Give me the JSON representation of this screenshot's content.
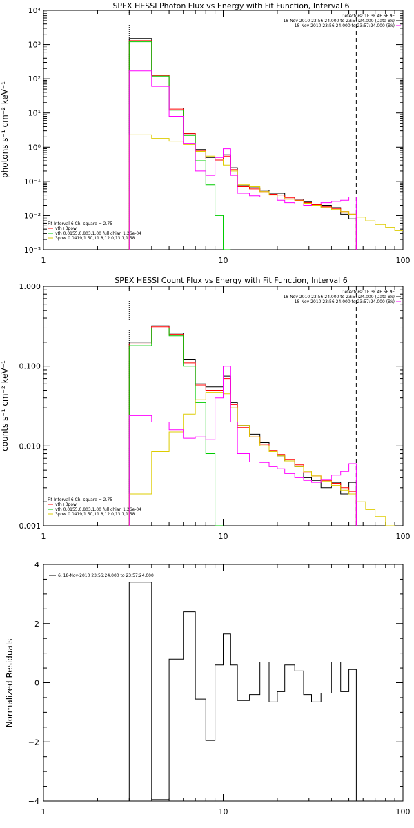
{
  "chart_data": [
    {
      "type": "line",
      "title": "SPEX HESSI Photon Flux vs Energy with Fit Function, Interval 6",
      "ylabel": "photons s⁻¹ cm⁻² keV⁻¹",
      "xlabel": "",
      "xscale": "log",
      "yscale": "log",
      "xlim": [
        1,
        100
      ],
      "ylim": [
        0.001,
        10000
      ],
      "xticks": [
        "1",
        "10",
        "100"
      ],
      "yticks": [
        "10⁻³",
        "10⁻²",
        "10⁻¹",
        "10⁰",
        "10¹",
        "10²",
        "10³",
        "10⁴"
      ],
      "grid": false,
      "vlines": {
        "dotted": 3,
        "dashed": 55
      },
      "edges": [
        3,
        4,
        5,
        6,
        7,
        8,
        9,
        10,
        11,
        12,
        14,
        16,
        18,
        20,
        22,
        25,
        28,
        31,
        35,
        40,
        45,
        50,
        55,
        62,
        70,
        80,
        90,
        100
      ],
      "legend_top": {
        "lines": [
          "Detectors: 1F 3F 4F 6F 9F",
          "18-Nov-2010 23:56:24.000 to 23:57:24.000 (Data-Bk)",
          "18-Nov-2010 23:56:24.000 to 23:57:24.000 (Bk)"
        ],
        "colors": [
          "#000000",
          "#000000",
          "#ff00ff"
        ]
      },
      "legend_bottom": {
        "lines": [
          "Fit Interval 6   Chi-square = 2.75",
          "vth+3pow",
          "vth 0.0155,0.803,1.00  full chian 1.26e-04",
          "3pow 0.0419,1.50,11.8,12.0,13.1,1.58"
        ],
        "colors": [
          "",
          "#ff0000",
          "#00cc00",
          "#ddcc00"
        ]
      },
      "series": [
        {
          "color": "#000000",
          "values": [
            1500,
            130,
            14,
            2.5,
            0.85,
            0.5,
            0.45,
            0.6,
            0.25,
            0.075,
            0.065,
            0.055,
            0.045,
            0.045,
            0.035,
            0.03,
            0.025,
            0.022,
            0.02,
            0.017,
            0.011,
            0.008
          ]
        },
        {
          "color": "#ff0000",
          "values": [
            1300,
            125,
            13,
            2.5,
            0.8,
            0.45,
            0.42,
            0.55,
            0.22,
            0.07,
            0.06,
            0.05,
            0.042,
            0.04,
            0.033,
            0.028,
            0.024,
            0.021,
            0.018,
            0.016,
            0.013,
            0.011
          ]
        },
        {
          "color": "#00cc00",
          "values": [
            1200,
            120,
            12,
            2.2,
            0.4,
            0.08,
            0.01,
            0.0005
          ]
        },
        {
          "color": "#ddcc00",
          "values": [
            2.3,
            1.8,
            1.5,
            1.2,
            0.75,
            0.55,
            0.45,
            0.3,
            0.2,
            0.08,
            0.07,
            0.05,
            0.04,
            0.035,
            0.03,
            0.027,
            0.023,
            0.02,
            0.017,
            0.015,
            0.013,
            0.011,
            0.009,
            0.007,
            0.0055,
            0.0045,
            0.0036
          ]
        },
        {
          "color": "#ff00ff",
          "values": [
            170,
            60,
            8,
            1.3,
            0.2,
            0.15,
            0.5,
            0.9,
            0.15,
            0.045,
            0.038,
            0.035,
            0.035,
            0.028,
            0.024,
            0.022,
            0.02,
            0.022,
            0.024,
            0.026,
            0.028,
            0.035
          ]
        }
      ]
    },
    {
      "type": "line",
      "title": "SPEX HESSI Count Flux vs Energy with Fit Function, Interval 6",
      "ylabel": "counts s⁻¹ cm⁻² keV⁻¹",
      "xlabel": "",
      "xscale": "log",
      "yscale": "log",
      "xlim": [
        1,
        100
      ],
      "ylim": [
        0.001,
        1.0
      ],
      "xticks": [
        "1",
        "10",
        "100"
      ],
      "yticks": [
        "0.001",
        "0.010",
        "0.100",
        "1.000"
      ],
      "grid": false,
      "vlines": {
        "dotted": 3,
        "dashed": 55
      },
      "edges": [
        3,
        4,
        5,
        6,
        7,
        8,
        9,
        10,
        11,
        12,
        14,
        16,
        18,
        20,
        22,
        25,
        28,
        31,
        35,
        40,
        45,
        50,
        55,
        62,
        70,
        80,
        90,
        100
      ],
      "legend_top": {
        "lines": [
          "Detectors: 1F 3F 4F 6F 9F",
          "18-Nov-2010 23:56:24.000 to 23:57:24.000 (Data-Bk)",
          "18-Nov-2010 23:56:24.000 to 23:57:24.000 (Bk)"
        ],
        "colors": [
          "#000000",
          "#000000",
          "#ff00ff"
        ]
      },
      "legend_bottom": {
        "lines": [
          "Fit Interval 6   Chi-square = 2.75",
          "vth+3pow",
          "vth 0.0155,0.803,1.00  full chian 1.26e-04",
          "3pow 0.0419,1.50,11.8,12.0,13.1,1.58"
        ],
        "colors": [
          "",
          "#ff0000",
          "#00cc00",
          "#ddcc00"
        ]
      },
      "series": [
        {
          "color": "#000000",
          "values": [
            0.2,
            0.32,
            0.26,
            0.12,
            0.06,
            0.055,
            0.055,
            0.075,
            0.035,
            0.018,
            0.014,
            0.011,
            0.0085,
            0.0075,
            0.0065,
            0.0055,
            0.004,
            0.0037,
            0.003,
            0.0035,
            0.0025,
            0.0035
          ]
        },
        {
          "color": "#ff0000",
          "values": [
            0.19,
            0.31,
            0.25,
            0.11,
            0.058,
            0.05,
            0.05,
            0.07,
            0.033,
            0.017,
            0.013,
            0.0105,
            0.0088,
            0.0078,
            0.0068,
            0.0058,
            0.0046,
            0.0042,
            0.0037,
            0.0034,
            0.003,
            0.0027
          ]
        },
        {
          "color": "#00cc00",
          "values": [
            0.18,
            0.3,
            0.24,
            0.1,
            0.035,
            0.008,
            0.0001
          ]
        },
        {
          "color": "#ddcc00",
          "values": [
            0.0025,
            0.0085,
            0.015,
            0.025,
            0.038,
            0.047,
            0.047,
            0.045,
            0.03,
            0.018,
            0.013,
            0.01,
            0.0085,
            0.0075,
            0.0065,
            0.0055,
            0.0048,
            0.0042,
            0.0036,
            0.0032,
            0.0028,
            0.0025,
            0.002,
            0.0016,
            0.0013,
            0.001
          ]
        },
        {
          "color": "#ff00ff",
          "values": [
            0.024,
            0.02,
            0.016,
            0.0125,
            0.013,
            0.012,
            0.04,
            0.1,
            0.02,
            0.008,
            0.0063,
            0.0062,
            0.0055,
            0.0052,
            0.0045,
            0.004,
            0.0037,
            0.0035,
            0.0038,
            0.0043,
            0.0048,
            0.006
          ]
        }
      ]
    },
    {
      "type": "line",
      "title": "",
      "ylabel": "Normalized Residuals",
      "xlabel": "",
      "xscale": "log",
      "yscale": "linear",
      "xlim": [
        1,
        100
      ],
      "ylim": [
        -4,
        4
      ],
      "xticks": [
        "1",
        "10",
        "100"
      ],
      "yticks": [
        "−4",
        "−2",
        "0",
        "2",
        "4"
      ],
      "grid": false,
      "edges": [
        3,
        4,
        5,
        6,
        7,
        8,
        9,
        10,
        11,
        12,
        14,
        16,
        18,
        20,
        22,
        25,
        28,
        31,
        35,
        40,
        45,
        50,
        55
      ],
      "legend": {
        "line": "6, 18-Nov-2010 23:56:24.000 to 23:57:24.000",
        "color": "#000000"
      },
      "series": [
        {
          "color": "#000000",
          "values": [
            3.4,
            -3.95,
            0.8,
            2.4,
            -0.55,
            -1.95,
            0.6,
            1.65,
            0.6,
            -0.6,
            -0.4,
            0.7,
            -0.65,
            -0.3,
            0.6,
            0.4,
            -0.4,
            -0.65,
            -0.35,
            0.7,
            -0.3,
            0.45
          ]
        }
      ]
    }
  ]
}
